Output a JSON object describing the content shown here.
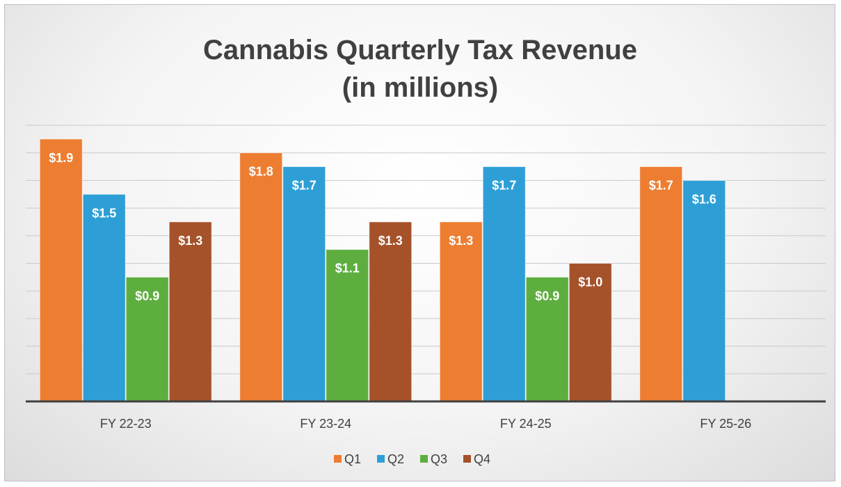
{
  "chart_data": {
    "type": "bar",
    "title": [
      "Cannabis Quarterly Tax Revenue",
      "(in millions)"
    ],
    "categories": [
      "FY 22-23",
      "FY 23-24",
      "FY 24-25",
      "FY 25-26"
    ],
    "series": [
      {
        "name": "Q1",
        "color": "#ed7d31",
        "values": [
          1.9,
          1.8,
          1.3,
          1.7
        ],
        "labels": [
          "$1.9",
          "$1.8",
          "$1.3",
          "$1.7"
        ]
      },
      {
        "name": "Q2",
        "color": "#2e9fd6",
        "values": [
          1.5,
          1.7,
          1.7,
          1.6
        ],
        "labels": [
          "$1.5",
          "$1.7",
          "$1.7",
          "$1.6"
        ]
      },
      {
        "name": "Q3",
        "color": "#5eae3f",
        "values": [
          0.9,
          1.1,
          0.9,
          null
        ],
        "labels": [
          "$0.9",
          "$1.1",
          "$0.9",
          ""
        ]
      },
      {
        "name": "Q4",
        "color": "#a5522a",
        "values": [
          1.3,
          1.3,
          1.0,
          null
        ],
        "labels": [
          "$1.3",
          "$1.3",
          "$1.0",
          ""
        ]
      }
    ],
    "ylim": [
      0,
      2.0
    ],
    "grid": true,
    "legend": "bottom",
    "xlabel": "",
    "ylabel": ""
  }
}
